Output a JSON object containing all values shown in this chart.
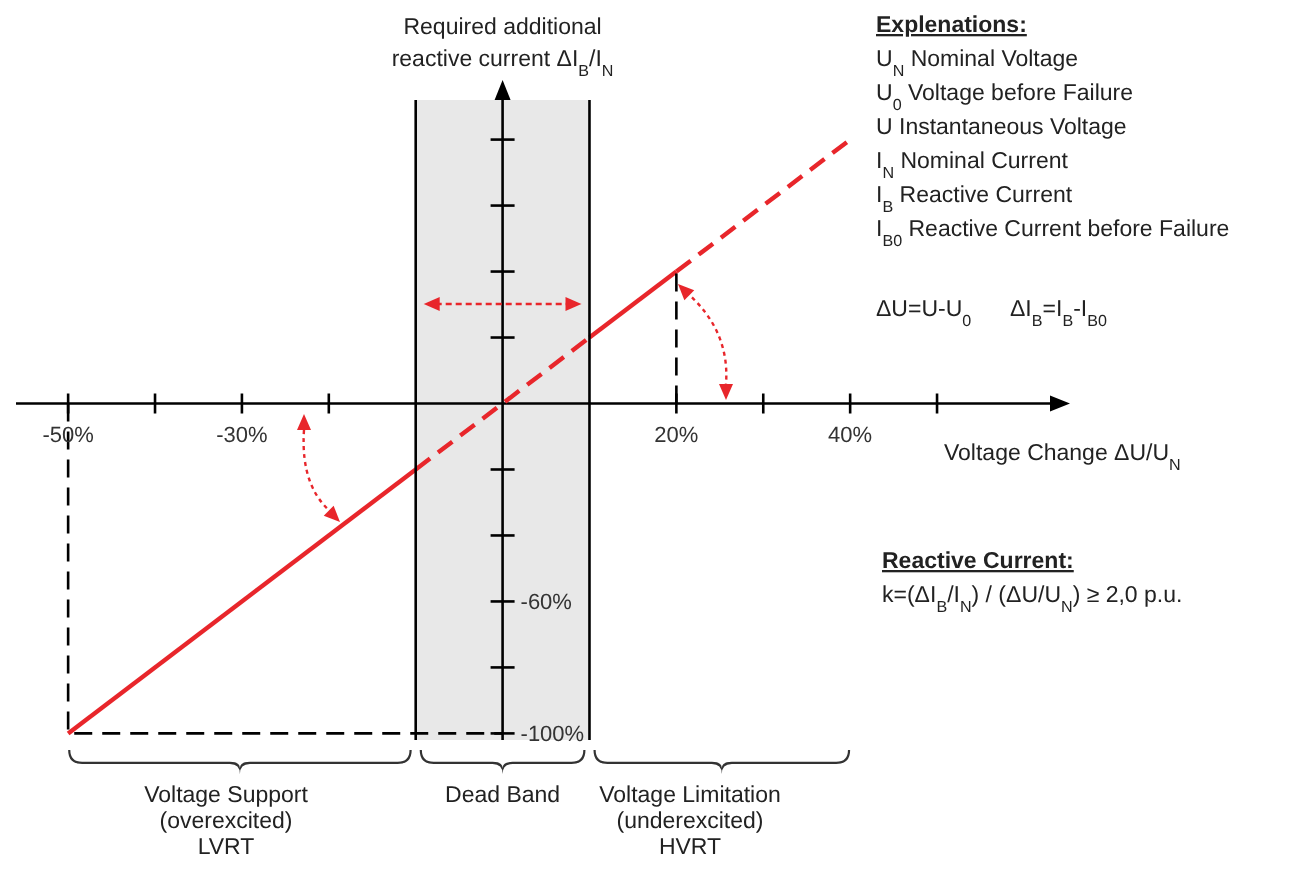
{
  "chart_data": {
    "type": "line",
    "xlabel": "Voltage Change ΔU/U$_{N}$",
    "ylabel": "Required additional\nreactive current ΔI$_{B}$/I$_{N}$",
    "xlim": [
      -56,
      63
    ],
    "ylim": [
      -102,
      92
    ],
    "xticks": [
      {
        "value": -50,
        "label": "-50%"
      },
      {
        "value": -40,
        "label": null
      },
      {
        "value": -30,
        "label": "-30%"
      },
      {
        "value": -20,
        "label": null
      },
      {
        "value": 20,
        "label": "20%"
      },
      {
        "value": 30,
        "label": null
      },
      {
        "value": 40,
        "label": "40%"
      },
      {
        "value": 50,
        "label": null
      }
    ],
    "yticks": [
      {
        "value": 80,
        "label": null
      },
      {
        "value": 60,
        "label": null
      },
      {
        "value": 40,
        "label": null
      },
      {
        "value": 20,
        "label": null
      },
      {
        "value": -20,
        "label": null
      },
      {
        "value": -40,
        "label": null
      },
      {
        "value": -60,
        "label": "-60%"
      },
      {
        "value": -80,
        "label": null
      },
      {
        "value": -100,
        "label": "-100%"
      }
    ],
    "series": [
      {
        "color": "#e8262b",
        "line_style": "solid",
        "x": [
          -50,
          -10
        ],
        "values": [
          -100,
          -20
        ]
      },
      {
        "color": "#e8262b",
        "line_style": "dashed",
        "x": [
          -10,
          10
        ],
        "values": [
          -20,
          20
        ]
      },
      {
        "color": "#e8262b",
        "line_style": "solid",
        "x": [
          10,
          20
        ],
        "values": [
          20,
          40
        ]
      },
      {
        "color": "#e8262b",
        "line_style": "dashed",
        "x": [
          20,
          40
        ],
        "values": [
          40,
          80
        ]
      },
      {
        "color": "#000000",
        "line_style": "dashed",
        "x": [
          -50,
          -50,
          0
        ],
        "values": [
          0,
          -100,
          -100
        ]
      },
      {
        "color": "#000000",
        "line_style": "dashed",
        "x": [
          20,
          20
        ],
        "values": [
          0,
          40
        ]
      }
    ],
    "marker": "none",
    "bands": [
      {
        "axis": "x",
        "from": -10,
        "to": 10,
        "label": "Dead Band",
        "color": "#d9d9d9"
      }
    ],
    "annotations": [
      "Explenations:",
      "U$_{N}$ Nominal Voltage",
      "U$_{0}$ Voltage before Failure",
      "U  Instantaneous Voltage",
      "I$_{N}$ Nominal Current",
      "I$_{B}$ Reactive Current",
      "I$_{B0}$ Reactive Current before Failure",
      "ΔU=U-U$_{0}$",
      "ΔI$_{B}$=I$_{B}$-I$_{B0}$",
      "Reactive Current:",
      "k=(ΔI$_{B}$/I$_{N}$) / (ΔU/U$_{N}$) ≥ 2,0 p.u.",
      "Voltage Support\n(overexcited)\nLVRT",
      "Voltage Limitation\n(underexcited)\nHVRT"
    ]
  }
}
